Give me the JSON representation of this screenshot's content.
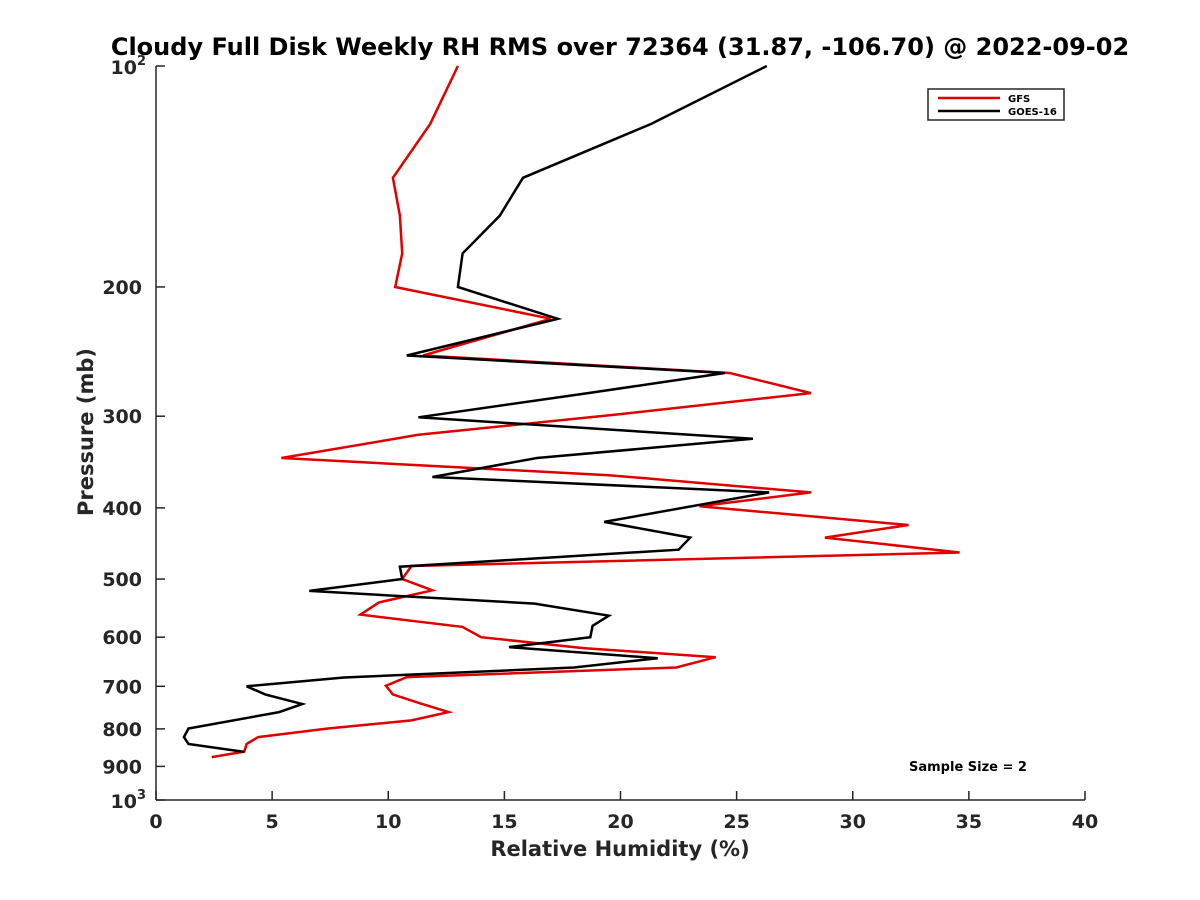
{
  "chart_data": {
    "type": "line",
    "title": "Cloudy Full Disk Weekly RH RMS over 72364 (31.87, -106.70) @ 2022-09-02",
    "xlabel": "Relative Humidity (%)",
    "ylabel": "Pressure (mb)",
    "xlim": [
      0,
      40
    ],
    "ylim": [
      100,
      1000
    ],
    "y_scale": "log",
    "y_reversed": true,
    "x_ticks": [
      0,
      5,
      10,
      15,
      20,
      25,
      30,
      35,
      40
    ],
    "x_tick_labels": [
      "0",
      "5",
      "10",
      "15",
      "20",
      "25",
      "30",
      "35",
      "40"
    ],
    "y_ticks": [
      {
        "value": 100,
        "base": "10",
        "exp": "2"
      },
      {
        "value": 200,
        "base": "200",
        "exp": ""
      },
      {
        "value": 300,
        "base": "300",
        "exp": ""
      },
      {
        "value": 400,
        "base": "400",
        "exp": ""
      },
      {
        "value": 500,
        "base": "500",
        "exp": ""
      },
      {
        "value": 600,
        "base": "600",
        "exp": ""
      },
      {
        "value": 700,
        "base": "700",
        "exp": ""
      },
      {
        "value": 800,
        "base": "800",
        "exp": ""
      },
      {
        "value": 900,
        "base": "900",
        "exp": ""
      },
      {
        "value": 1000,
        "base": "10",
        "exp": "3"
      }
    ],
    "grid": false,
    "legend_position": "top-right",
    "annotation": "Sample Size = 2",
    "series": [
      {
        "name": "GFS",
        "color": "#e00000",
        "points": [
          [
            13.0,
            100
          ],
          [
            11.8,
            120
          ],
          [
            10.2,
            142
          ],
          [
            10.5,
            160
          ],
          [
            10.6,
            180
          ],
          [
            10.3,
            200
          ],
          [
            17.0,
            221
          ],
          [
            11.5,
            248
          ],
          [
            24.7,
            262
          ],
          [
            28.2,
            279
          ],
          [
            20.0,
            298
          ],
          [
            11.3,
            318
          ],
          [
            5.4,
            342
          ],
          [
            19.5,
            361
          ],
          [
            28.2,
            381
          ],
          [
            23.4,
            398
          ],
          [
            32.4,
            422
          ],
          [
            28.8,
            439
          ],
          [
            34.6,
            460
          ],
          [
            11.0,
            480
          ],
          [
            10.6,
            500
          ],
          [
            11.9,
            518
          ],
          [
            9.6,
            538
          ],
          [
            8.8,
            559
          ],
          [
            13.2,
            581
          ],
          [
            14.0,
            600
          ],
          [
            18.4,
            621
          ],
          [
            24.1,
            639
          ],
          [
            22.4,
            660
          ],
          [
            10.8,
            680
          ],
          [
            9.9,
            699
          ],
          [
            10.2,
            718
          ],
          [
            11.4,
            739
          ],
          [
            12.6,
            759
          ],
          [
            11.0,
            779
          ],
          [
            7.4,
            799
          ],
          [
            4.4,
            821
          ],
          [
            3.9,
            839
          ],
          [
            3.8,
            859
          ],
          [
            2.4,
            874
          ]
        ]
      },
      {
        "name": "GOES-16",
        "color": "#000000",
        "points": [
          [
            26.3,
            100
          ],
          [
            21.3,
            120
          ],
          [
            15.8,
            142
          ],
          [
            14.8,
            160
          ],
          [
            13.2,
            180
          ],
          [
            13.0,
            200
          ],
          [
            17.3,
            221
          ],
          [
            10.8,
            248
          ],
          [
            24.5,
            262
          ],
          [
            18.6,
            279
          ],
          [
            11.3,
            301
          ],
          [
            25.7,
            322
          ],
          [
            16.4,
            342
          ],
          [
            11.9,
            363
          ],
          [
            26.4,
            381
          ],
          [
            19.3,
            418
          ],
          [
            23.0,
            439
          ],
          [
            22.5,
            456
          ],
          [
            10.5,
            481
          ],
          [
            10.6,
            500
          ],
          [
            6.6,
            519
          ],
          [
            16.3,
            540
          ],
          [
            19.5,
            561
          ],
          [
            18.8,
            579
          ],
          [
            18.7,
            600
          ],
          [
            15.2,
            619
          ],
          [
            21.6,
            641
          ],
          [
            18.0,
            660
          ],
          [
            8.1,
            681
          ],
          [
            3.9,
            700
          ],
          [
            4.7,
            718
          ],
          [
            6.3,
            740
          ],
          [
            5.3,
            759
          ],
          [
            1.4,
            799
          ],
          [
            1.2,
            821
          ],
          [
            1.4,
            839
          ],
          [
            3.8,
            860
          ]
        ]
      }
    ]
  }
}
